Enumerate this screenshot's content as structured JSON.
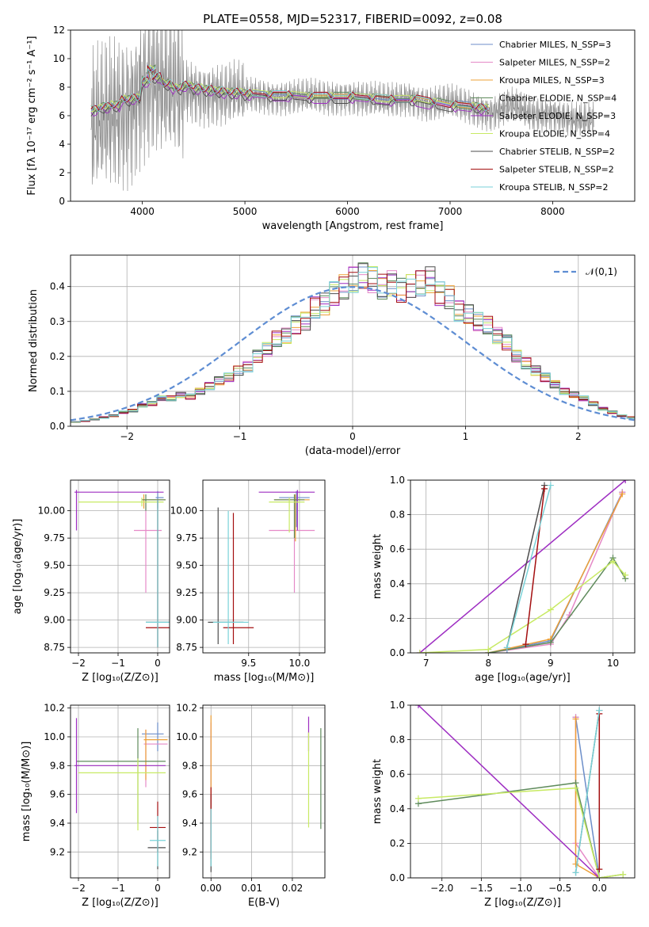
{
  "title": "PLATE=0558, MJD=52317, FIBERID=0092, z=0.08",
  "colors": [
    "#6c8ec9",
    "#e58ac7",
    "#eda037",
    "#5f8b5c",
    "#9e2ec2",
    "#c8ea64",
    "#4d4d4d",
    "#a40f10",
    "#7ad2d8"
  ],
  "chart_data": [
    {
      "id": "spectrum",
      "type": "line",
      "xlabel": "wavelength [Angstrom, rest frame]",
      "ylabel": "Flux [fλ 10⁻¹⁷ erg cm⁻² s⁻¹ A⁻¹]",
      "xlim": [
        3300,
        8800
      ],
      "ylim": [
        0,
        12
      ],
      "xticks": [
        "4000",
        "5000",
        "6000",
        "7000",
        "8000"
      ],
      "yticks": [
        "0",
        "2",
        "4",
        "6",
        "8",
        "10",
        "12"
      ],
      "legend_position": "top-right",
      "legend": [
        "Chabrier MILES, N_SSP=3",
        "Salpeter MILES, N_SSP=2",
        "Kroupa MILES, N_SSP=3",
        "Chabrier ELODIE, N_SSP=4",
        "Salpeter ELODIE, N_SSP=3",
        "Kroupa ELODIE, N_SSP=4",
        "Chabrier STELIB, N_SSP=2",
        "Salpeter STELIB, N_SSP=2",
        "Kroupa STELIB, N_SSP=2"
      ],
      "data_color": "#808080",
      "data_x": [
        3500,
        3600,
        3700,
        3800,
        3900,
        4000,
        4100,
        4200,
        4300,
        4400,
        4500,
        4600,
        4700,
        4800,
        4900,
        5000,
        5200,
        5400,
        5600,
        5800,
        6000,
        6200,
        6400,
        6600,
        6800,
        7000,
        7200,
        7400,
        7600,
        7800,
        8000,
        8200,
        8400
      ],
      "data_y": [
        5.0,
        5.5,
        6.0,
        6.3,
        6.8,
        8.2,
        8.5,
        8.0,
        7.7,
        7.8,
        7.7,
        7.6,
        7.6,
        7.4,
        7.5,
        7.4,
        7.4,
        7.3,
        7.3,
        7.2,
        7.4,
        7.1,
        7.0,
        7.3,
        6.8,
        6.9,
        6.6,
        6.2,
        6.7,
        6.0,
        6.2,
        5.7,
        5.6
      ],
      "model_x": [
        3500,
        3600,
        3700,
        3800,
        3900,
        4000,
        4050,
        4100,
        4200,
        4300,
        4400,
        4500,
        4600,
        4700,
        4800,
        4900,
        5000,
        5200,
        5400,
        5600,
        5800,
        6000,
        6200,
        6400,
        6600,
        6800,
        7000,
        7200,
        7300
      ],
      "model_y": [
        6.5,
        6.7,
        6.8,
        7.2,
        7.3,
        8.5,
        9.3,
        8.8,
        8.3,
        8.0,
        8.2,
        8.0,
        7.9,
        7.8,
        7.7,
        7.7,
        7.6,
        7.5,
        7.5,
        7.4,
        7.4,
        7.4,
        7.3,
        7.2,
        7.2,
        7.0,
        6.8,
        6.7,
        6.6
      ]
    },
    {
      "id": "residuals",
      "type": "step",
      "xlabel": "(data-model)/error",
      "ylabel": "Normed distribution",
      "xlim": [
        -2.5,
        2.5
      ],
      "ylim": [
        0,
        0.49
      ],
      "xticks": [
        "−2",
        "−1",
        "0",
        "1",
        "2"
      ],
      "yticks": [
        "0.0",
        "0.1",
        "0.2",
        "0.3",
        "0.4"
      ],
      "gaussian_label": "𝒩(0,1)",
      "gaussian_color": "#5e8dd3",
      "bin_width": 0.1,
      "histogram": [
        0.012,
        0.015,
        0.02,
        0.025,
        0.03,
        0.04,
        0.045,
        0.06,
        0.065,
        0.08,
        0.08,
        0.09,
        0.085,
        0.1,
        0.115,
        0.13,
        0.14,
        0.16,
        0.17,
        0.2,
        0.22,
        0.25,
        0.26,
        0.29,
        0.3,
        0.34,
        0.35,
        0.38,
        0.4,
        0.42,
        0.43,
        0.42,
        0.4,
        0.41,
        0.39,
        0.4,
        0.41,
        0.42,
        0.38,
        0.37,
        0.33,
        0.32,
        0.3,
        0.29,
        0.26,
        0.24,
        0.2,
        0.18,
        0.16,
        0.14,
        0.12,
        0.1,
        0.09,
        0.08,
        0.065,
        0.05,
        0.04,
        0.03,
        0.025,
        0.015
      ]
    },
    {
      "id": "age_vs_Z",
      "type": "errorbar",
      "xlabel": "Z [log₁₀(Z/Z⊙)]",
      "ylabel": "age  [log₁₀(age/yr)]",
      "xlim": [
        -2.2,
        0.3
      ],
      "ylim": [
        8.7,
        10.28
      ],
      "xticks": [
        "−2",
        "−1",
        "0"
      ],
      "yticks": [
        "8.75",
        "9.00",
        "9.25",
        "9.50",
        "9.75",
        "10.00"
      ],
      "points": [
        {
          "c": 0,
          "x": 0.0,
          "xl": -0.05,
          "xh": 0.15,
          "y": 10.12,
          "yl": 10.02,
          "yh": 10.18
        },
        {
          "c": 1,
          "x": -0.3,
          "xl": -0.6,
          "xh": 0.1,
          "y": 9.82,
          "yl": 9.25,
          "yh": 10.1
        },
        {
          "c": 2,
          "x": -0.35,
          "xl": -0.4,
          "xh": 0.2,
          "y": 10.1,
          "yl": 10.02,
          "yh": 10.15
        },
        {
          "c": 3,
          "x": -0.3,
          "xl": -0.4,
          "xh": 0.2,
          "y": 10.1,
          "yl": 10.0,
          "yh": 10.15
        },
        {
          "c": 4,
          "x": -2.05,
          "xl": -2.1,
          "xh": 0.15,
          "y": 10.17,
          "yl": 9.82,
          "yh": 10.19
        },
        {
          "c": 5,
          "x": -0.4,
          "xl": -2.0,
          "xh": 0.15,
          "y": 10.08,
          "yl": 10.04,
          "yh": 10.12
        },
        {
          "c": 6,
          "x": 0.0,
          "xl": -0.3,
          "xh": 0.3,
          "y": 8.98,
          "yl": 8.75,
          "yh": 10.1
        },
        {
          "c": 7,
          "x": 0.0,
          "xl": -0.3,
          "xh": 0.3,
          "y": 8.93,
          "yl": 8.75,
          "yh": 10.1
        },
        {
          "c": 8,
          "x": 0.0,
          "xl": -0.3,
          "xh": 0.3,
          "y": 8.98,
          "yl": 8.75,
          "yh": 10.1
        }
      ]
    },
    {
      "id": "age_vs_mass",
      "type": "errorbar",
      "xlabel": "mass [log₁₀(M/M⊙)]",
      "ylabel": "",
      "xlim": [
        9.05,
        10.25
      ],
      "ylim": [
        8.7,
        10.28
      ],
      "xticks": [
        "9.5",
        "10.0"
      ],
      "yticks": [
        "8.75",
        "9.00",
        "9.25",
        "9.50",
        "9.75",
        "10.00"
      ],
      "points": [
        {
          "c": 0,
          "x": 9.97,
          "xl": 9.8,
          "xh": 10.1,
          "y": 10.12,
          "yl": 9.85,
          "yh": 10.18
        },
        {
          "c": 1,
          "x": 9.95,
          "xl": 9.7,
          "xh": 10.15,
          "y": 9.82,
          "yl": 9.25,
          "yh": 10.1
        },
        {
          "c": 2,
          "x": 9.96,
          "xl": 9.75,
          "xh": 10.1,
          "y": 10.1,
          "yl": 9.72,
          "yh": 10.15
        },
        {
          "c": 3,
          "x": 9.95,
          "xl": 9.75,
          "xh": 10.05,
          "y": 10.1,
          "yl": 9.75,
          "yh": 10.15
        },
        {
          "c": 4,
          "x": 9.98,
          "xl": 9.6,
          "xh": 10.15,
          "y": 10.17,
          "yl": 9.82,
          "yh": 10.19
        },
        {
          "c": 5,
          "x": 9.9,
          "xl": 9.7,
          "xh": 10.05,
          "y": 10.08,
          "yl": 9.8,
          "yh": 10.12
        },
        {
          "c": 6,
          "x": 9.2,
          "xl": 9.1,
          "xh": 9.45,
          "y": 8.98,
          "yl": 8.78,
          "yh": 10.03
        },
        {
          "c": 7,
          "x": 9.35,
          "xl": 9.25,
          "xh": 9.55,
          "y": 8.93,
          "yl": 8.78,
          "yh": 9.98
        },
        {
          "c": 8,
          "x": 9.3,
          "xl": 9.15,
          "xh": 9.5,
          "y": 8.98,
          "yl": 8.78,
          "yh": 10.0
        }
      ]
    },
    {
      "id": "weight_vs_age",
      "type": "line",
      "xlabel": "age  [log₁₀(age/yr)]",
      "ylabel": "mass weight",
      "xlim": [
        6.75,
        10.35
      ],
      "ylim": [
        0,
        1
      ],
      "xticks": [
        "7",
        "8",
        "9",
        "10"
      ],
      "yticks": [
        "0.0",
        "0.2",
        "0.4",
        "0.6",
        "0.8",
        "1.0"
      ],
      "series": [
        {
          "c": 0,
          "x": [
            8.3,
            9.0,
            10.15
          ],
          "y": [
            0.02,
            0.07,
            0.93
          ]
        },
        {
          "c": 1,
          "x": [
            8.0,
            9.0,
            9.3,
            10.15
          ],
          "y": [
            0.0,
            0.05,
            0.22,
            0.93
          ]
        },
        {
          "c": 2,
          "x": [
            8.0,
            9.0,
            10.15
          ],
          "y": [
            0.0,
            0.08,
            0.92
          ]
        },
        {
          "c": 3,
          "x": [
            8.0,
            9.0,
            10.0,
            10.2
          ],
          "y": [
            0.0,
            0.06,
            0.55,
            0.43
          ]
        },
        {
          "c": 4,
          "x": [
            6.9,
            10.2
          ],
          "y": [
            0.0,
            1.0
          ]
        },
        {
          "c": 5,
          "x": [
            6.9,
            8.0,
            9.0,
            10.0,
            10.2
          ],
          "y": [
            0.0,
            0.02,
            0.25,
            0.53,
            0.45
          ]
        },
        {
          "c": 6,
          "x": [
            8.3,
            8.9
          ],
          "y": [
            0.03,
            0.97
          ]
        },
        {
          "c": 7,
          "x": [
            8.6,
            8.9
          ],
          "y": [
            0.05,
            0.95
          ]
        },
        {
          "c": 8,
          "x": [
            8.3,
            9.0
          ],
          "y": [
            0.03,
            0.97
          ]
        }
      ]
    },
    {
      "id": "mass_vs_Z",
      "type": "errorbar",
      "xlabel": "Z [log₁₀(Z/Z⊙)]",
      "ylabel": "mass [log₁₀(M/M⊙)]",
      "xlim": [
        -2.2,
        0.3
      ],
      "ylim": [
        9.02,
        10.22
      ],
      "xticks": [
        "−2",
        "−1",
        "0"
      ],
      "yticks": [
        "9.2",
        "9.4",
        "9.6",
        "9.8",
        "10.0",
        "10.2"
      ],
      "points": [
        {
          "c": 0,
          "x": 0.0,
          "xl": -0.4,
          "xh": 0.15,
          "y": 10.02,
          "yl": 9.9,
          "yh": 10.1
        },
        {
          "c": 1,
          "x": -0.3,
          "xl": -0.35,
          "xh": 0.25,
          "y": 9.95,
          "yl": 9.65,
          "yh": 10.05
        },
        {
          "c": 2,
          "x": -0.3,
          "xl": -0.35,
          "xh": 0.25,
          "y": 9.98,
          "yl": 9.7,
          "yh": 10.05
        },
        {
          "c": 3,
          "x": -0.5,
          "xl": -2.05,
          "xh": 0.2,
          "y": 9.83,
          "yl": 9.4,
          "yh": 10.06
        },
        {
          "c": 4,
          "x": -2.05,
          "xl": -2.1,
          "xh": 0.2,
          "y": 9.8,
          "yl": 9.47,
          "yh": 10.13
        },
        {
          "c": 5,
          "x": -0.5,
          "xl": -2.0,
          "xh": 0.2,
          "y": 9.75,
          "yl": 9.35,
          "yh": 9.85
        },
        {
          "c": 6,
          "x": 0.0,
          "xl": -0.25,
          "xh": 0.2,
          "y": 9.23,
          "yl": 9.08,
          "yh": 9.35
        },
        {
          "c": 7,
          "x": 0.0,
          "xl": -0.2,
          "xh": 0.2,
          "y": 9.37,
          "yl": 9.2,
          "yh": 9.55
        },
        {
          "c": 8,
          "x": 0.0,
          "xl": -0.2,
          "xh": 0.2,
          "y": 9.28,
          "yl": 9.1,
          "yh": 9.45
        }
      ]
    },
    {
      "id": "mass_vs_EBV",
      "type": "errorbar",
      "xlabel": "E(B-V)",
      "ylabel": "",
      "xlim": [
        -0.002,
        0.028
      ],
      "ylim": [
        9.02,
        10.22
      ],
      "xticks": [
        "0.00",
        "0.01",
        "0.02"
      ],
      "yticks": [
        "9.2",
        "9.4",
        "9.6",
        "9.8",
        "10.0",
        "10.2"
      ],
      "points": [
        {
          "c": 0,
          "x": 0.0,
          "xl": 0.0,
          "xh": 0.0,
          "y": 9.6,
          "yl": 9.2,
          "yh": 10.05
        },
        {
          "c": 1,
          "x": 0.0,
          "xl": 0.0,
          "xh": 0.0,
          "y": 9.7,
          "yl": 9.3,
          "yh": 10.1
        },
        {
          "c": 2,
          "x": 0.0,
          "xl": 0.0,
          "xh": 0.0,
          "y": 9.7,
          "yl": 9.3,
          "yh": 10.15
        },
        {
          "c": 3,
          "x": 0.027,
          "xl": 0.027,
          "xh": 0.027,
          "y": 9.7,
          "yl": 9.36,
          "yh": 10.06
        },
        {
          "c": 4,
          "x": 0.024,
          "xl": 0.024,
          "xh": 0.024,
          "y": 10.05,
          "yl": 9.9,
          "yh": 10.14
        },
        {
          "c": 5,
          "x": 0.024,
          "xl": 0.024,
          "xh": 0.024,
          "y": 9.7,
          "yl": 9.37,
          "yh": 10.03
        },
        {
          "c": 6,
          "x": 0.0,
          "xl": 0.0,
          "xh": 0.0,
          "y": 9.3,
          "yl": 9.06,
          "yh": 9.6
        },
        {
          "c": 7,
          "x": 0.0,
          "xl": 0.0,
          "xh": 0.0,
          "y": 9.4,
          "yl": 9.15,
          "yh": 9.65
        },
        {
          "c": 8,
          "x": 0.0,
          "xl": 0.0,
          "xh": 0.0,
          "y": 9.3,
          "yl": 9.1,
          "yh": 9.5
        }
      ]
    },
    {
      "id": "weight_vs_Z",
      "type": "line",
      "xlabel": "Z [log₁₀(Z/Z⊙)]",
      "ylabel": "mass weight",
      "xlim": [
        -2.4,
        0.45
      ],
      "ylim": [
        0,
        1
      ],
      "xticks": [
        "−2.0",
        "−1.5",
        "−1.0",
        "−0.5",
        "0.0"
      ],
      "yticks": [
        "0.0",
        "0.2",
        "0.4",
        "0.6",
        "0.8",
        "1.0"
      ],
      "series": [
        {
          "c": 0,
          "x": [
            -0.3,
            0.0
          ],
          "y": [
            0.93,
            0.0
          ]
        },
        {
          "c": 1,
          "x": [
            -0.3,
            -0.3,
            0.0
          ],
          "y": [
            0.93,
            0.2,
            0.0
          ]
        },
        {
          "c": 2,
          "x": [
            -0.3,
            -0.3,
            0.0
          ],
          "y": [
            0.92,
            0.08,
            0.0
          ]
        },
        {
          "c": 3,
          "x": [
            -2.3,
            -0.3,
            0.0,
            0.3
          ],
          "y": [
            0.43,
            0.55,
            0.0,
            0.02
          ]
        },
        {
          "c": 4,
          "x": [
            -2.3,
            0.0
          ],
          "y": [
            1.0,
            0.0
          ]
        },
        {
          "c": 5,
          "x": [
            -2.3,
            -0.3,
            0.0,
            0.3
          ],
          "y": [
            0.46,
            0.52,
            0.0,
            0.02
          ]
        },
        {
          "c": 6,
          "x": [
            -0.3,
            0.0
          ],
          "y": [
            0.03,
            0.97
          ]
        },
        {
          "c": 7,
          "x": [
            0.0,
            0.0
          ],
          "y": [
            0.05,
            0.95
          ]
        },
        {
          "c": 8,
          "x": [
            -0.3,
            0.0
          ],
          "y": [
            0.03,
            0.97
          ]
        }
      ]
    }
  ]
}
